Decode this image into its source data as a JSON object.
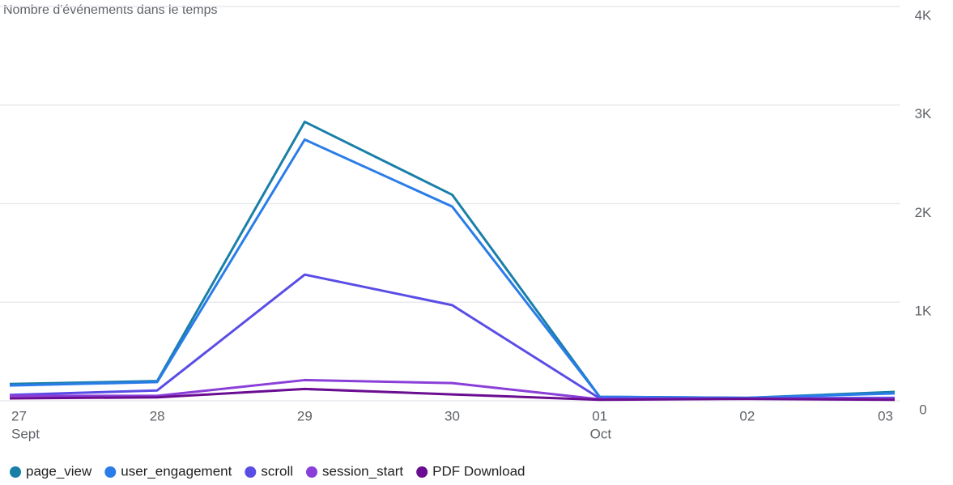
{
  "chart_data": {
    "type": "line",
    "title": "Nombre d'événements dans le temps",
    "categories": [
      "27",
      "28",
      "29",
      "30",
      "01",
      "02",
      "03"
    ],
    "x_sublabels": [
      "Sept",
      null,
      null,
      null,
      "Oct",
      null,
      null
    ],
    "series": [
      {
        "name": "page_view",
        "color": "#1a7fa8",
        "values": [
          170,
          200,
          2830,
          2090,
          40,
          30,
          90
        ]
      },
      {
        "name": "user_engagement",
        "color": "#2a7de8",
        "values": [
          155,
          190,
          2650,
          1970,
          40,
          30,
          75
        ]
      },
      {
        "name": "scroll",
        "color": "#5a4de6",
        "values": [
          60,
          105,
          1280,
          970,
          25,
          25,
          30
        ]
      },
      {
        "name": "session_start",
        "color": "#8a3fd8",
        "values": [
          50,
          50,
          210,
          180,
          15,
          20,
          20
        ]
      },
      {
        "name": "PDF Download",
        "color": "#6a0d91",
        "values": [
          25,
          35,
          120,
          65,
          10,
          20,
          10
        ]
      }
    ],
    "ylim": [
      0,
      4000
    ],
    "yticks": [
      0,
      {
        "value": 1000,
        "label": "1K"
      },
      {
        "value": 2000,
        "label": "2K"
      },
      {
        "value": 3000,
        "label": "3K"
      },
      {
        "value": 4000,
        "label": "4K"
      }
    ],
    "grid": true,
    "legend": "bottom-left"
  }
}
